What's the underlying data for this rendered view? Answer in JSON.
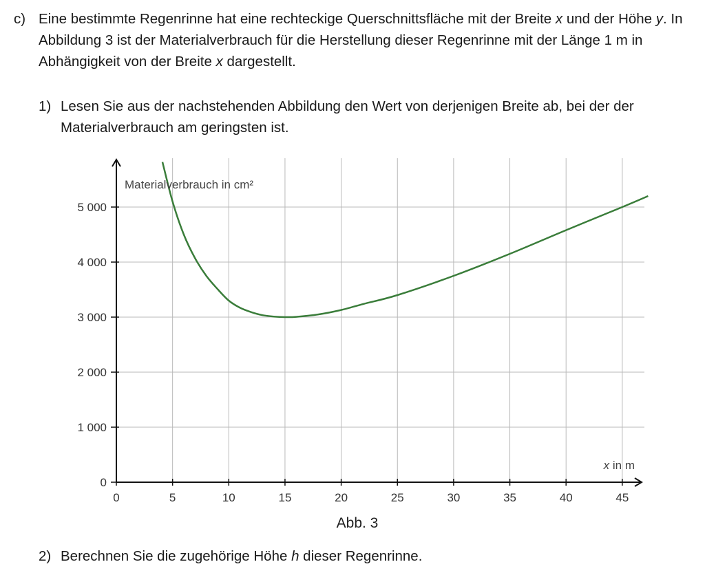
{
  "task_c": {
    "marker": "c)",
    "text_parts": [
      "Eine bestimmte Regenrinne hat eine rechteckige Querschnittsfläche mit der Breite ",
      "x",
      " und der Höhe ",
      "y",
      ". In Abbildung 3 ist der Materialverbrauch für die Herstellung dieser Regenrinne mit der Länge 1 m in Abhängigkeit von der Breite ",
      "x",
      " dargestellt."
    ]
  },
  "subtask_1": {
    "marker": "1)",
    "text": "Lesen Sie aus der nachstehenden Abbildung den Wert von derjenigen Breite ab, bei der der Materialverbrauch am geringsten ist."
  },
  "subtask_2": {
    "marker": "2)",
    "text_parts": [
      "Berechnen Sie die zugehörige Höhe ",
      "h",
      " dieser Regenrinne."
    ]
  },
  "chart_data": {
    "type": "line",
    "caption": "Abb. 3",
    "ylabel": "Materialverbrauch in cm²",
    "xlabel_var": "x",
    "xlabel_unit": " in m",
    "xlim": [
      0,
      47
    ],
    "ylim": [
      0,
      5800
    ],
    "x_ticks": [
      0,
      5,
      10,
      15,
      20,
      25,
      30,
      35,
      40,
      45
    ],
    "x_tick_labels": [
      "0",
      "5",
      "10",
      "15",
      "20",
      "25",
      "30",
      "35",
      "40",
      "45"
    ],
    "y_ticks": [
      0,
      1000,
      2000,
      3000,
      4000,
      5000
    ],
    "y_tick_labels": [
      "0",
      "1 000",
      "2 000",
      "3 000",
      "4 000",
      "5 000"
    ],
    "grid": true,
    "line_color": "#3a7d3a",
    "series": [
      {
        "x": [
          4.1,
          5,
          6,
          7,
          8,
          9,
          10,
          11,
          12,
          13,
          14,
          15,
          16,
          18,
          20,
          22,
          25,
          30,
          35,
          40,
          45,
          47.3
        ],
        "values": [
          5820,
          5100,
          4500,
          4070,
          3750,
          3510,
          3300,
          3170,
          3090,
          3035,
          3010,
          3000,
          3005,
          3050,
          3130,
          3240,
          3400,
          3750,
          4150,
          4580,
          5000,
          5200
        ]
      }
    ]
  }
}
